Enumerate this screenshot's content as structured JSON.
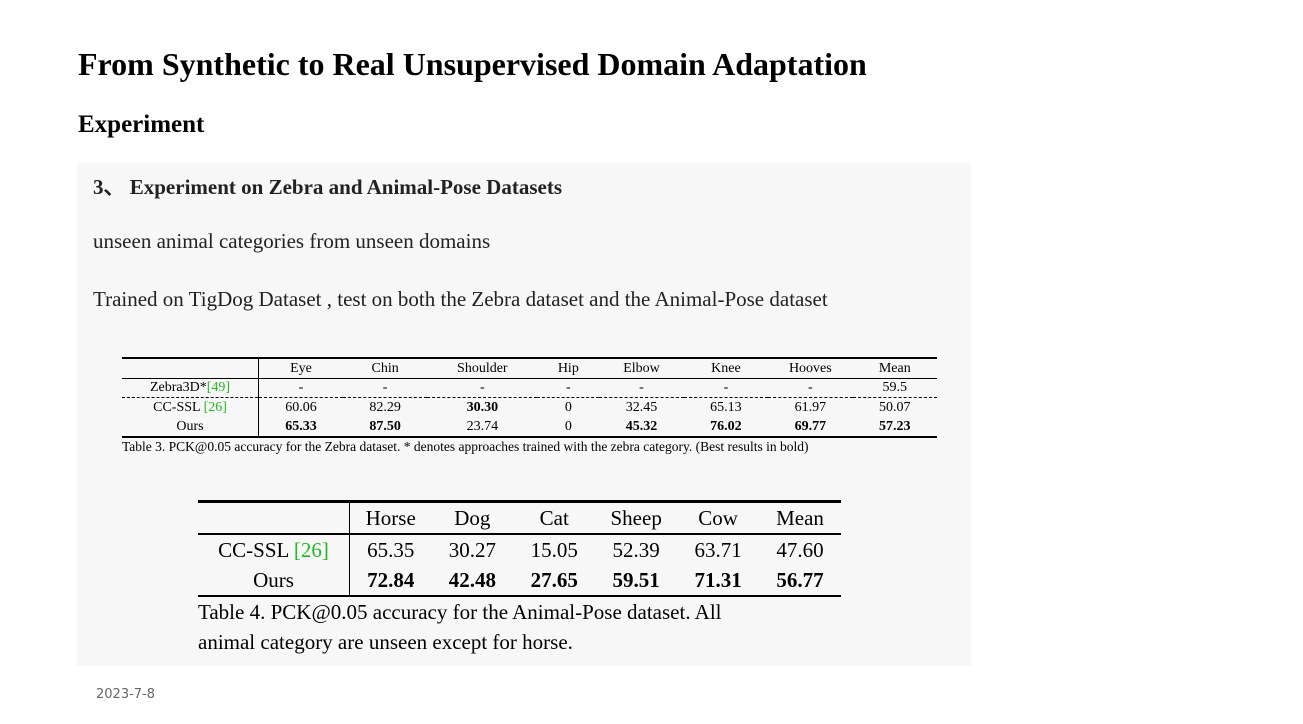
{
  "page": {
    "title": "From Synthetic to Real Unsupervised Domain Adaptation",
    "section": "Experiment",
    "date": "2023-7-8"
  },
  "panel": {
    "heading": "3、 Experiment on Zebra and Animal-Pose Datasets",
    "line1": "unseen animal categories from unseen domains",
    "line2": "Trained on TigDog Dataset , test on both the Zebra dataset and the Animal-Pose dataset"
  },
  "table3": {
    "headers": [
      "",
      "Eye",
      "Chin",
      "Shoulder",
      "Hip",
      "Elbow",
      "Knee",
      "Hooves",
      "Mean"
    ],
    "rows": [
      {
        "method": "Zebra3D*",
        "cite": "[49]",
        "values": [
          "-",
          "-",
          "-",
          "-",
          "-",
          "-",
          "-",
          "59.5"
        ]
      },
      {
        "method": "CC-SSL ",
        "cite": "[26]",
        "values": [
          "60.06",
          "82.29",
          "30.30",
          "0",
          "32.45",
          "65.13",
          "61.97",
          "50.07"
        ]
      },
      {
        "method": "Ours",
        "cite": "",
        "values": [
          "65.33",
          "87.50",
          "23.74",
          "0",
          "45.32",
          "76.02",
          "69.77",
          "57.23"
        ]
      }
    ],
    "caption": "Table 3. PCK@0.05 accuracy for the Zebra dataset. * denotes approaches trained with the zebra category. (Best results in bold)"
  },
  "table4": {
    "headers": [
      "",
      "Horse",
      "Dog",
      "Cat",
      "Sheep",
      "Cow",
      "Mean"
    ],
    "rows": [
      {
        "method": "CC-SSL ",
        "cite": "[26]",
        "values": [
          "65.35",
          "30.27",
          "15.05",
          "52.39",
          "63.71",
          "47.60"
        ]
      },
      {
        "method": "Ours",
        "cite": "",
        "values": [
          "72.84",
          "42.48",
          "27.65",
          "59.51",
          "71.31",
          "56.77"
        ]
      }
    ],
    "caption_line1": "Table 4. PCK@0.05 accuracy for the Animal-Pose dataset.  All",
    "caption_line2": "animal category are unseen except for horse."
  }
}
